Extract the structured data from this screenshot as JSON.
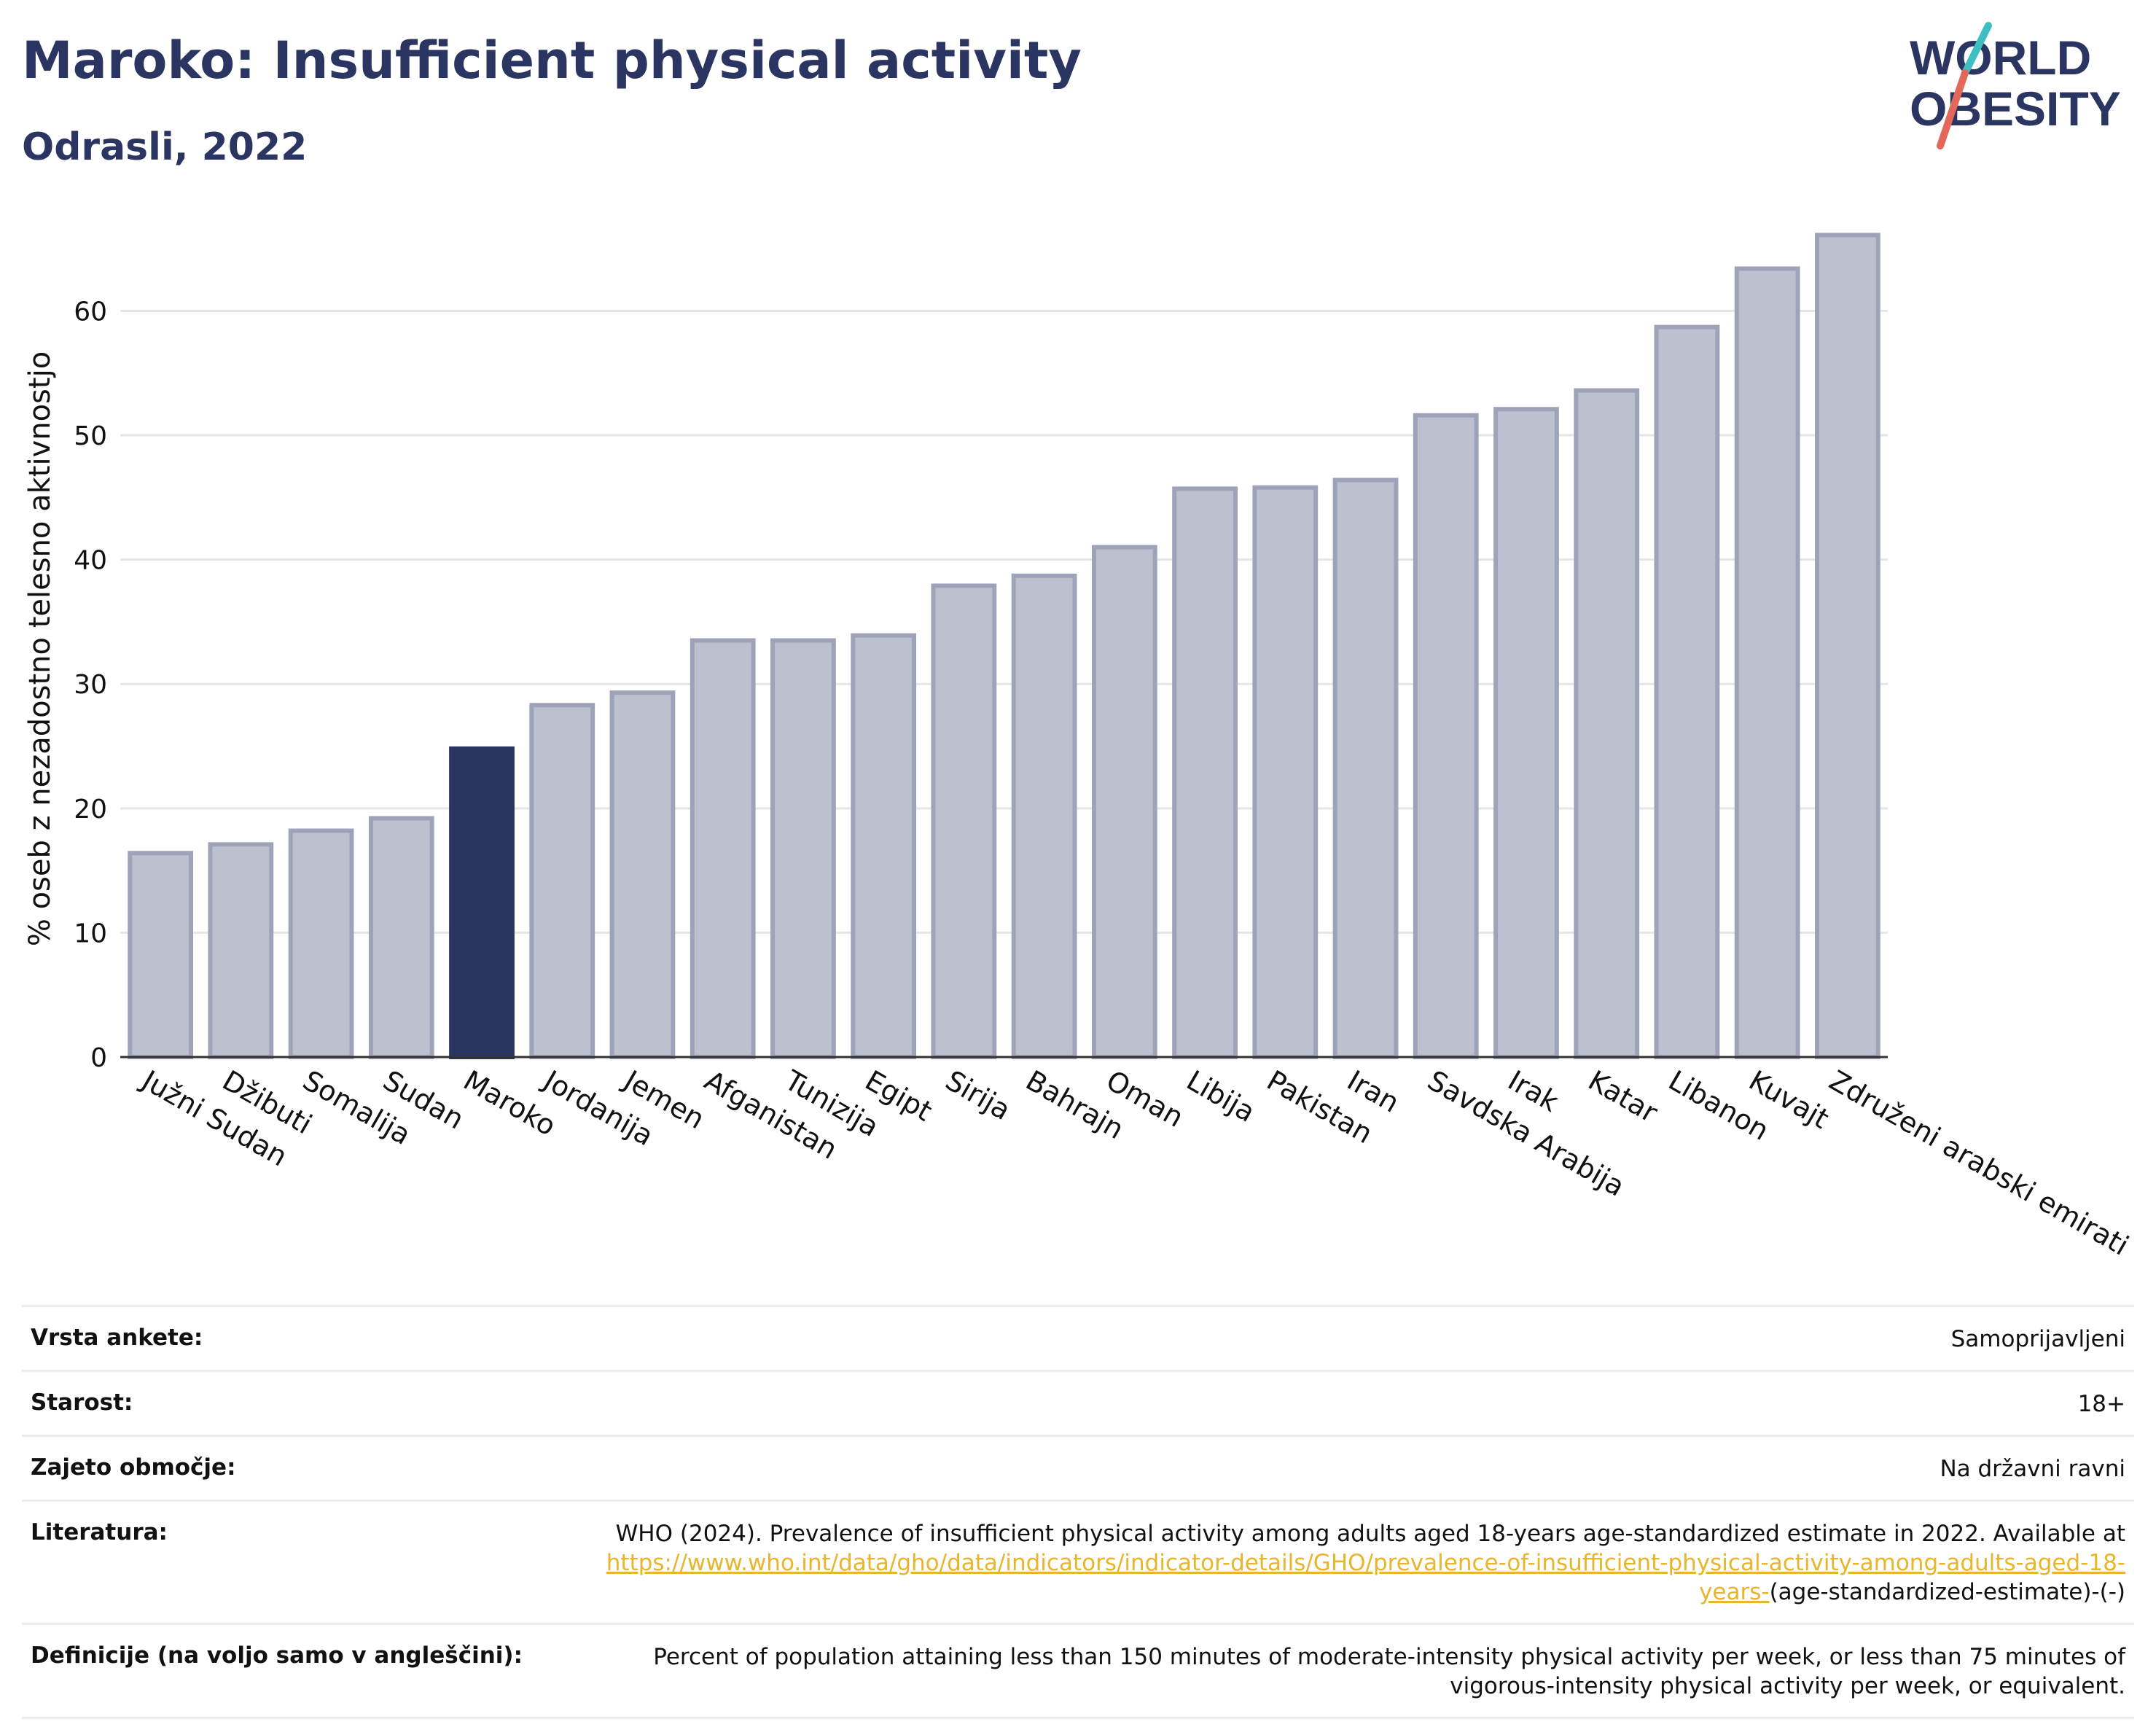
{
  "header": {
    "title": "Maroko: Insufficient physical activity",
    "subtitle": "Odrasli, 2022"
  },
  "logo": {
    "line1": "WORLD",
    "line2": "OBESITY",
    "colors": {
      "text": "#2b3561",
      "slash_teal": "#3dbfc1",
      "slash_red": "#e4685a"
    }
  },
  "chart_data": {
    "type": "bar",
    "title": "",
    "xlabel": "",
    "ylabel": "% oseb z nezadostno telesno aktivnostjo",
    "ylim": [
      0,
      68
    ],
    "yticks": [
      0,
      10,
      20,
      30,
      40,
      50,
      60
    ],
    "grid": true,
    "highlight": "Maroko",
    "colors": {
      "bar": "#bcc0cf",
      "bar_edge": "#9ea3ba",
      "highlight": "#2b3561"
    },
    "categories": [
      "Južni Sudan",
      "Džibuti",
      "Somalija",
      "Sudan",
      "Maroko",
      "Jordanija",
      "Jemen",
      "Afganistan",
      "Tunizija",
      "Egipt",
      "Sirija",
      "Bahrajn",
      "Oman",
      "Libija",
      "Pakistan",
      "Iran",
      "Savdska Arabija",
      "Irak",
      "Katar",
      "Libanon",
      "Kuvajt",
      "Združeni arabski emirati"
    ],
    "values": [
      16.4,
      17.1,
      18.2,
      19.2,
      24.8,
      28.3,
      29.3,
      33.5,
      33.5,
      33.9,
      37.9,
      38.7,
      41.0,
      45.7,
      45.8,
      46.4,
      51.6,
      52.1,
      53.6,
      58.7,
      63.4,
      66.1
    ]
  },
  "meta": {
    "rows": [
      {
        "label": "Vrsta ankete:",
        "value": "Samoprijavljeni"
      },
      {
        "label": "Starost:",
        "value": "18+"
      },
      {
        "label": "Zajeto območje:",
        "value": "Na državni ravni"
      },
      {
        "label": "Literatura:",
        "value": "WHO (2024). Prevalence of insufficient physical activity among adults aged 18-years age-standardized estimate in 2022. Available at",
        "link": "https://www.who.int/data/gho/data/indicators/indicator-details/GHO/prevalence-of-insufficient-physical-activity-among-adults-aged-18-years-",
        "suffix": "(age-standardized-estimate)-(-)"
      },
      {
        "label": "Definicije (na voljo samo v angleščini):",
        "value": "Percent of population attaining less than 150 minutes of moderate-intensity physical activity per week, or less than 75 minutes of vigorous-intensity physical activity per week, or equivalent."
      }
    ]
  }
}
